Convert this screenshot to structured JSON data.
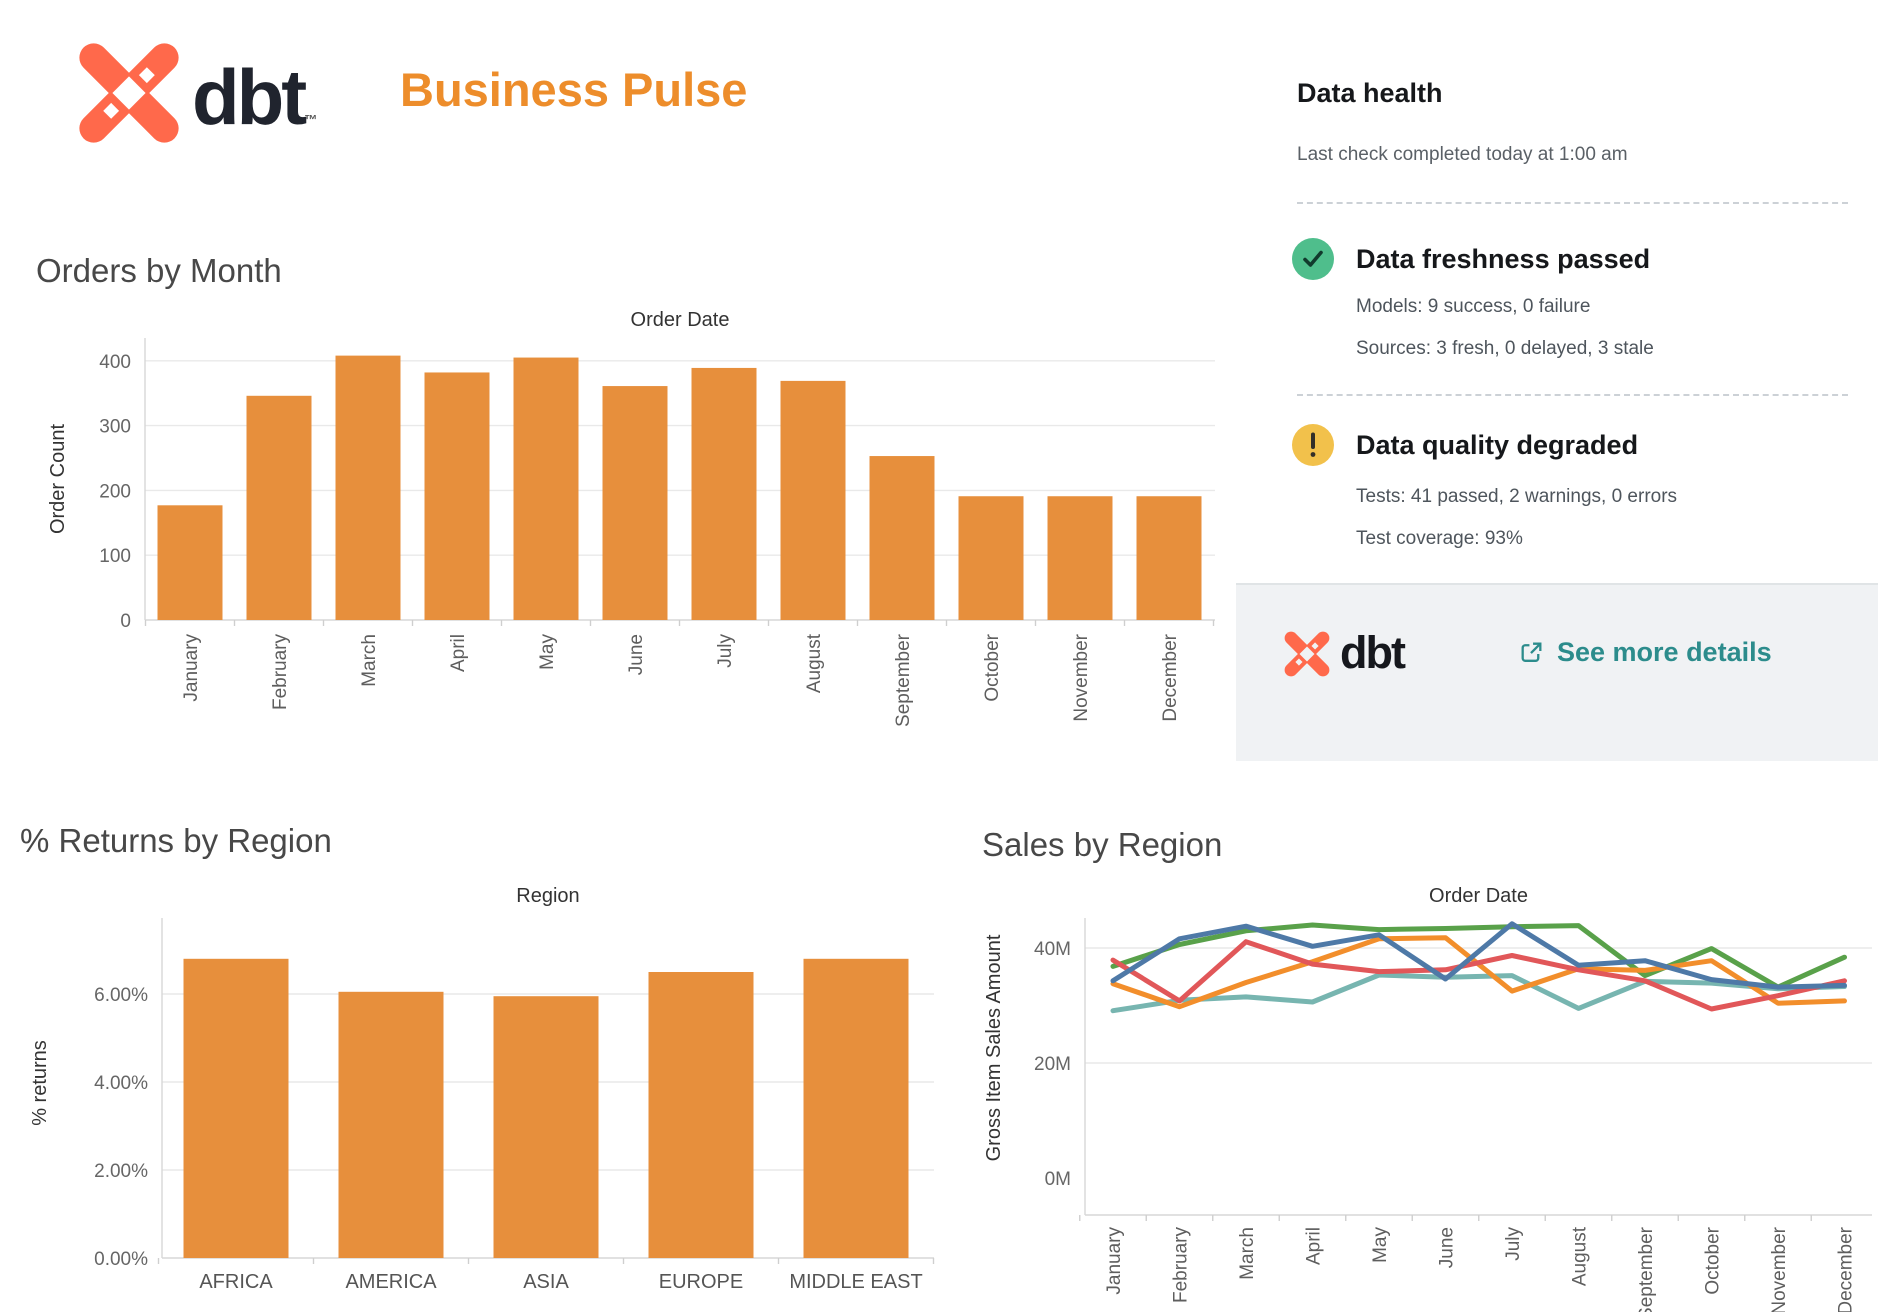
{
  "header": {
    "brand": "dbt",
    "trademark": "™",
    "title": "Business Pulse",
    "brand_color": "#FF694B",
    "title_color": "#ED8D2B"
  },
  "data_health": {
    "title": "Data health",
    "subtitle": "Last check completed today at 1:00 am",
    "sections": [
      {
        "status": "passed",
        "icon": "check-circle",
        "icon_bg": "#4FBE8C",
        "title": "Data freshness passed",
        "lines": [
          "Models: 9 success, 0 failure",
          "Sources: 3 fresh, 0 delayed, 3 stale"
        ]
      },
      {
        "status": "warning",
        "icon": "exclamation-circle",
        "icon_bg": "#F2C14B",
        "title": "Data quality degraded",
        "lines": [
          "Tests: 41 passed, 2 warnings, 0 errors",
          "Test coverage: 93%"
        ]
      }
    ],
    "footer": {
      "brand": "dbt",
      "link_label": "See more details",
      "link_color": "#2C8C8C"
    }
  },
  "chart_data": [
    {
      "id": "orders_by_month",
      "type": "bar",
      "title": "Orders by Month",
      "pane_title": "Order Date",
      "xlabel": "",
      "ylabel": "Order Count",
      "categories": [
        "January",
        "February",
        "March",
        "April",
        "May",
        "June",
        "July",
        "August",
        "September",
        "October",
        "November",
        "December"
      ],
      "values": [
        177,
        346,
        408,
        382,
        405,
        361,
        389,
        369,
        253,
        191,
        191,
        191
      ],
      "yticks": [
        0,
        100,
        200,
        300,
        400
      ],
      "ytick_labels": [
        "0",
        "100",
        "200",
        "300",
        "400"
      ],
      "ylim": [
        0,
        435
      ],
      "grid": true,
      "bar_color": "#E78F3C"
    },
    {
      "id": "returns_by_region",
      "type": "bar",
      "title": "% Returns by Region",
      "pane_title": "Region",
      "xlabel": "",
      "ylabel": "% returns",
      "categories": [
        "AFRICA",
        "AMERICA",
        "ASIA",
        "EUROPE",
        "MIDDLE EAST"
      ],
      "values": [
        6.8,
        6.05,
        5.95,
        6.5,
        6.8
      ],
      "yticks": [
        0,
        2,
        4,
        6
      ],
      "ytick_labels": [
        "0.00%",
        "2.00%",
        "4.00%",
        "6.00%"
      ],
      "ylim": [
        0,
        7.7
      ],
      "grid": true,
      "bar_color": "#E78F3C"
    },
    {
      "id": "sales_by_region",
      "type": "line",
      "title": "Sales by Region",
      "pane_title": "Order Date",
      "xlabel": "",
      "ylabel": "Gross Item Sales Amount",
      "x": [
        "January",
        "February",
        "March",
        "April",
        "May",
        "June",
        "July",
        "August",
        "September",
        "October",
        "November",
        "December"
      ],
      "yticks": [
        0,
        20,
        40
      ],
      "ytick_labels": [
        "0M",
        "20M",
        "40M"
      ],
      "ylim": [
        0,
        46
      ],
      "grid": true,
      "legend": "none",
      "series": [
        {
          "name": "teal",
          "color": "#77B5B0",
          "values": [
            29.1,
            30.9,
            31.5,
            30.6,
            35.3,
            34.9,
            35.2,
            29.5,
            34.2,
            33.9,
            32.9,
            33.3
          ]
        },
        {
          "name": "green",
          "color": "#59A14A",
          "values": [
            36.8,
            40.6,
            43.0,
            44.0,
            43.2,
            43.4,
            43.7,
            43.9,
            35.2,
            39.9,
            33.2,
            38.4
          ]
        },
        {
          "name": "orange",
          "color": "#F28E2B",
          "values": [
            33.8,
            29.8,
            34.0,
            37.6,
            41.6,
            41.8,
            32.5,
            36.4,
            36.1,
            37.8,
            30.4,
            30.8
          ]
        },
        {
          "name": "red",
          "color": "#E15759",
          "values": [
            37.9,
            30.8,
            41.1,
            37.2,
            35.9,
            36.2,
            38.7,
            36.2,
            34.3,
            29.4,
            31.7,
            34.3
          ]
        },
        {
          "name": "blue",
          "color": "#4E79A7",
          "values": [
            34.3,
            41.6,
            43.8,
            40.3,
            42.3,
            34.6,
            44.2,
            37.0,
            37.8,
            34.5,
            33.2,
            33.5
          ]
        }
      ]
    }
  ]
}
